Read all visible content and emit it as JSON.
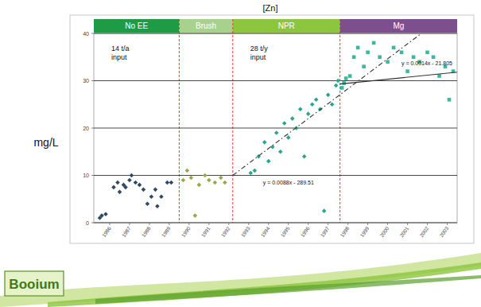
{
  "chart_data": {
    "type": "scatter",
    "title": "[Zn]",
    "y_label": "mg/L",
    "xlim": [
      1985.2,
      2003.5
    ],
    "xticks": [
      1986,
      1987,
      1988,
      1989,
      1990,
      1991,
      1992,
      1993,
      1994,
      1995,
      1996,
      1997,
      1998,
      1999,
      2000,
      2001,
      2002,
      2003
    ],
    "ylim": [
      0,
      40
    ],
    "yticks": [
      0,
      10,
      20,
      30,
      40
    ],
    "grid": true,
    "phases": [
      {
        "label": "No EE",
        "start": 1985.2,
        "end": 1989.5,
        "color": "#1f9a45",
        "note": [
          "14 t/a",
          "input"
        ]
      },
      {
        "label": "Brush",
        "start": 1989.5,
        "end": 1992.2,
        "color": "#a9d18e"
      },
      {
        "label": "NPR",
        "start": 1992.2,
        "end": 1997.6,
        "color": "#8cc63f",
        "note": [
          "28 t/y",
          "input"
        ]
      },
      {
        "label": "Mg",
        "start": 1997.6,
        "end": 2003.5,
        "color": "#7d4f8f"
      }
    ],
    "series": [
      {
        "type": "scatter",
        "color": "#2f4a66",
        "marker": "diamond",
        "x": [
          1985.5,
          1985.6,
          1985.8,
          1986.2,
          1986.4,
          1986.5,
          1986.7,
          1986.8,
          1987.0,
          1987.1,
          1987.3,
          1987.5,
          1987.7,
          1987.9,
          1988.1,
          1988.3,
          1988.4,
          1988.6,
          1988.9,
          1989.1
        ],
        "values": [
          1.0,
          1.5,
          1.8,
          7.5,
          8.5,
          6.5,
          8.0,
          7.5,
          9.0,
          10.0,
          8.5,
          8.0,
          7.0,
          4.0,
          5.5,
          7.0,
          3.5,
          5.5,
          8.5,
          8.5
        ]
      },
      {
        "type": "scatter",
        "color": "#9aa84a",
        "marker": "diamond",
        "x": [
          1989.7,
          1989.9,
          1990.1,
          1990.3,
          1990.5,
          1990.8,
          1991.0,
          1991.3,
          1991.6,
          1991.8
        ],
        "values": [
          9.0,
          11.0,
          9.5,
          1.5,
          8.0,
          10.0,
          9.0,
          8.5,
          9.5,
          8.5
        ]
      },
      {
        "type": "scatter",
        "color": "#2aa58c",
        "marker": "diamond",
        "x": [
          1993.1,
          1993.3,
          1993.5,
          1993.8,
          1994.0,
          1994.2,
          1994.4,
          1994.6,
          1994.8,
          1995.0,
          1995.2,
          1995.4,
          1995.6,
          1995.8,
          1996.0,
          1996.2,
          1996.4,
          1996.6,
          1996.8,
          1997.0,
          1997.2,
          1997.4,
          1997.5
        ],
        "values": [
          10.5,
          11.0,
          14.0,
          17.0,
          13.0,
          16.0,
          19.0,
          15.0,
          21.0,
          18.0,
          22.0,
          20.0,
          24.0,
          14.0,
          23.0,
          25.0,
          26.0,
          24.0,
          2.5,
          27.0,
          25.0,
          29.0,
          30.0
        ]
      },
      {
        "type": "scatter",
        "color": "#3cb89a",
        "marker": "square",
        "x": [
          1997.7,
          1997.8,
          1997.9,
          1998.1,
          1998.3,
          1998.5,
          1998.8,
          1999.0,
          1999.3,
          1999.6,
          2000.0,
          2000.3,
          2000.7,
          2001.0,
          2001.3,
          2001.6,
          2002.0,
          2002.3,
          2002.6,
          2002.9,
          2003.1,
          2003.3
        ],
        "values": [
          28.5,
          29.5,
          30.5,
          31.0,
          35.0,
          37.0,
          33.0,
          36.0,
          38.0,
          35.0,
          34.0,
          37.0,
          36.0,
          32.0,
          35.0,
          34.0,
          36.0,
          35.0,
          31.0,
          33.0,
          26.0,
          32.0
        ]
      },
      {
        "name": "y = 0.0088x - 289.51",
        "type": "line",
        "color": "#333333",
        "line_style": "dashdot",
        "x": [
          1992.2,
          2001.7
        ],
        "values": [
          10.0,
          40.0
        ]
      },
      {
        "name": "y = 0.0014x - 21.805",
        "type": "line",
        "color": "#333333",
        "line_style": "solid",
        "x": [
          1997.6,
          2003.5
        ],
        "values": [
          29.3,
          31.8
        ]
      }
    ]
  },
  "footer": {
    "logo": "Booium"
  }
}
